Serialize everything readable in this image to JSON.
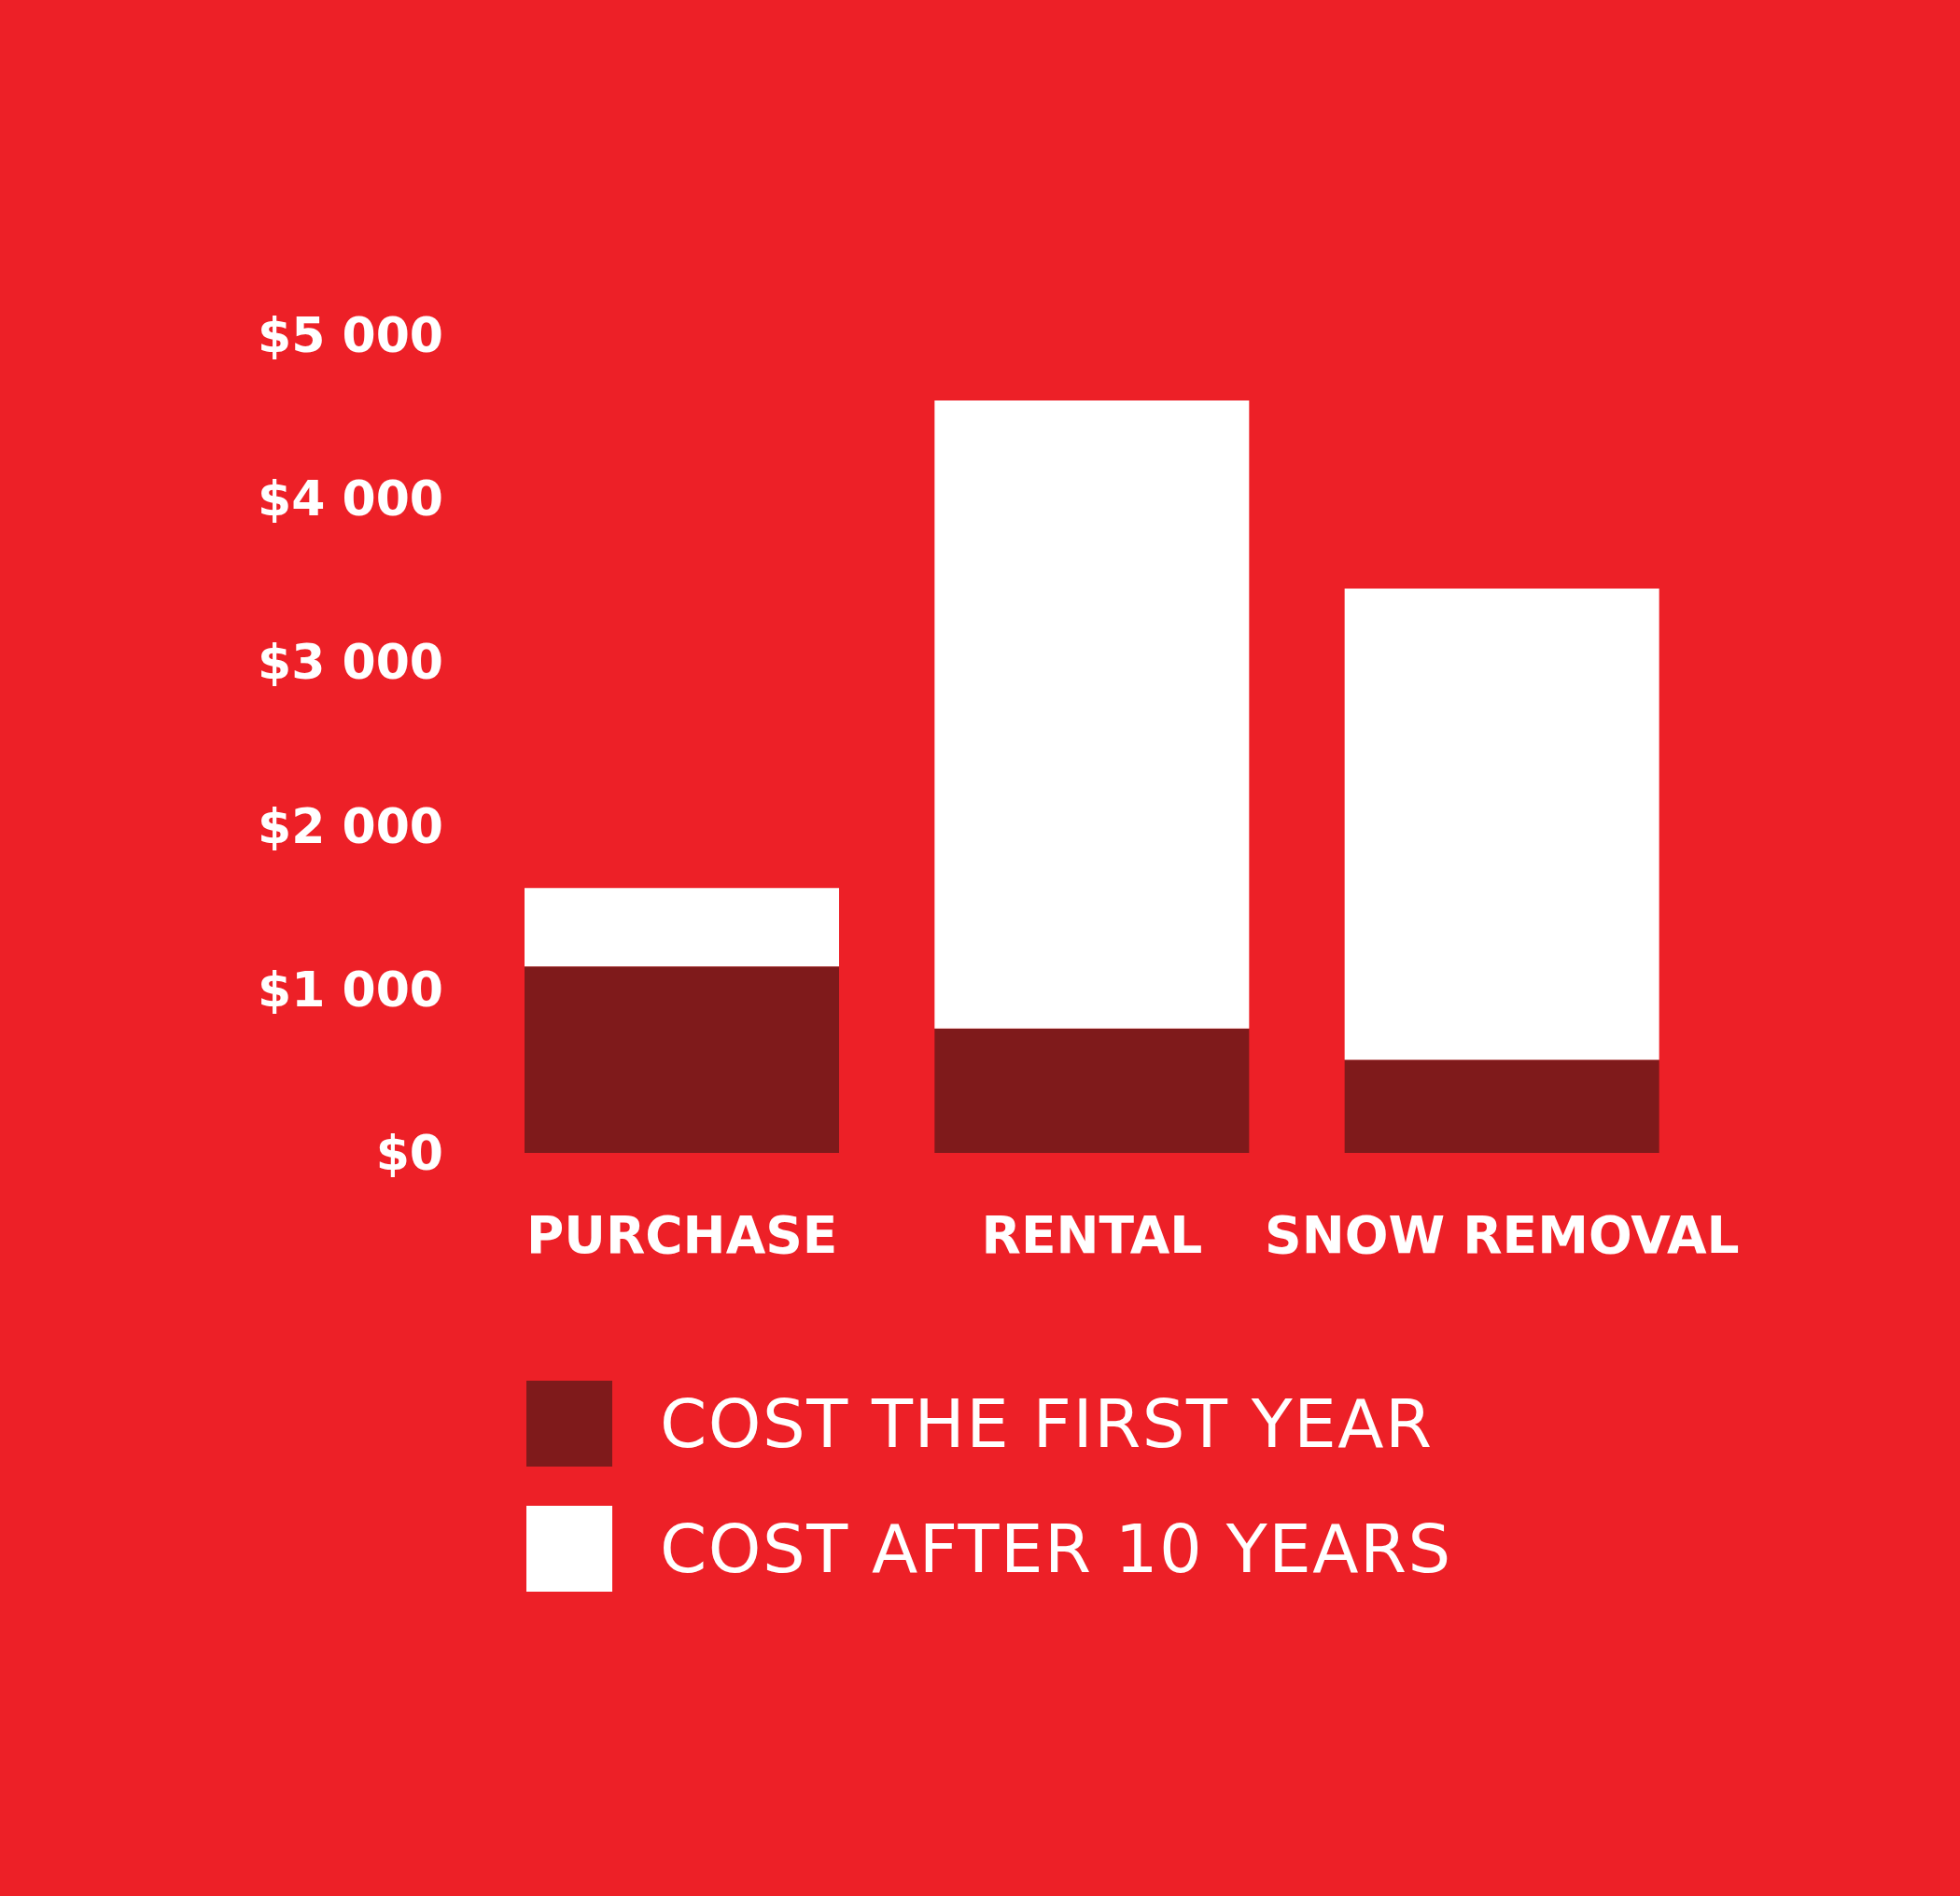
{
  "chart_data": {
    "type": "bar",
    "stacked": true,
    "categories": [
      "PURCHASE",
      "RENTAL",
      "SNOW REMOVAL"
    ],
    "series": [
      {
        "name": "COST THE FIRST YEAR",
        "color": "#7f1a1b",
        "values": [
          1140,
          760,
          570
        ]
      },
      {
        "name": "COST AFTER 10 YEARS",
        "color": "#ffffff",
        "values": [
          480,
          3840,
          2880
        ]
      }
    ],
    "ylim": [
      0,
      5000
    ],
    "yticks": [
      {
        "value": 0,
        "label": "$0"
      },
      {
        "value": 1000,
        "label": "$1 000"
      },
      {
        "value": 2000,
        "label": "$2 000"
      },
      {
        "value": 3000,
        "label": "$3 000"
      },
      {
        "value": 4000,
        "label": "$4 000"
      },
      {
        "value": 5000,
        "label": "$5 000"
      }
    ],
    "legend": "bottom"
  }
}
